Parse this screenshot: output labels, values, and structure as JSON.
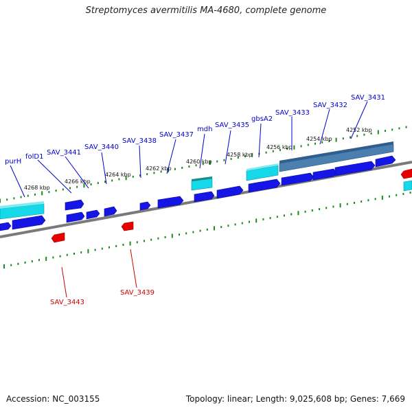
{
  "title": "Streptomyces avermitilis MA-4680, complete genome",
  "footer": {
    "accession": "Accession: NC_003155",
    "stats": "Topology: linear; Length: 9,025,608 bp; Genes: 7,669"
  },
  "kbp_labels": [
    "4268 kbp",
    "4266 kbp",
    "4264 kbp",
    "4262 kbp",
    "4260 kbp",
    "4258 kbp",
    "4256 kbp",
    "4254 kbp",
    "4252 kbp"
  ],
  "gene_labels": [
    "purH",
    "folD1",
    "SAV_3441",
    "SAV_3440",
    "SAV_3438",
    "SAV_3437",
    "mdh",
    "SAV_3435",
    "gbsA2",
    "SAV_3433",
    "SAV_3432",
    "SAV_3431",
    "SAV_3443",
    "SAV_3439"
  ],
  "colors": {
    "forward_label": "#0000cc",
    "reverse_label": "#cc0000",
    "forward_gene": "#1515e6",
    "reverse_gene": "#e60000",
    "cyan_gene": "#15d8e8",
    "steel_gene": "#4a7fb0",
    "axis": "#7a7a7a",
    "tick": "#1a8a1a"
  }
}
